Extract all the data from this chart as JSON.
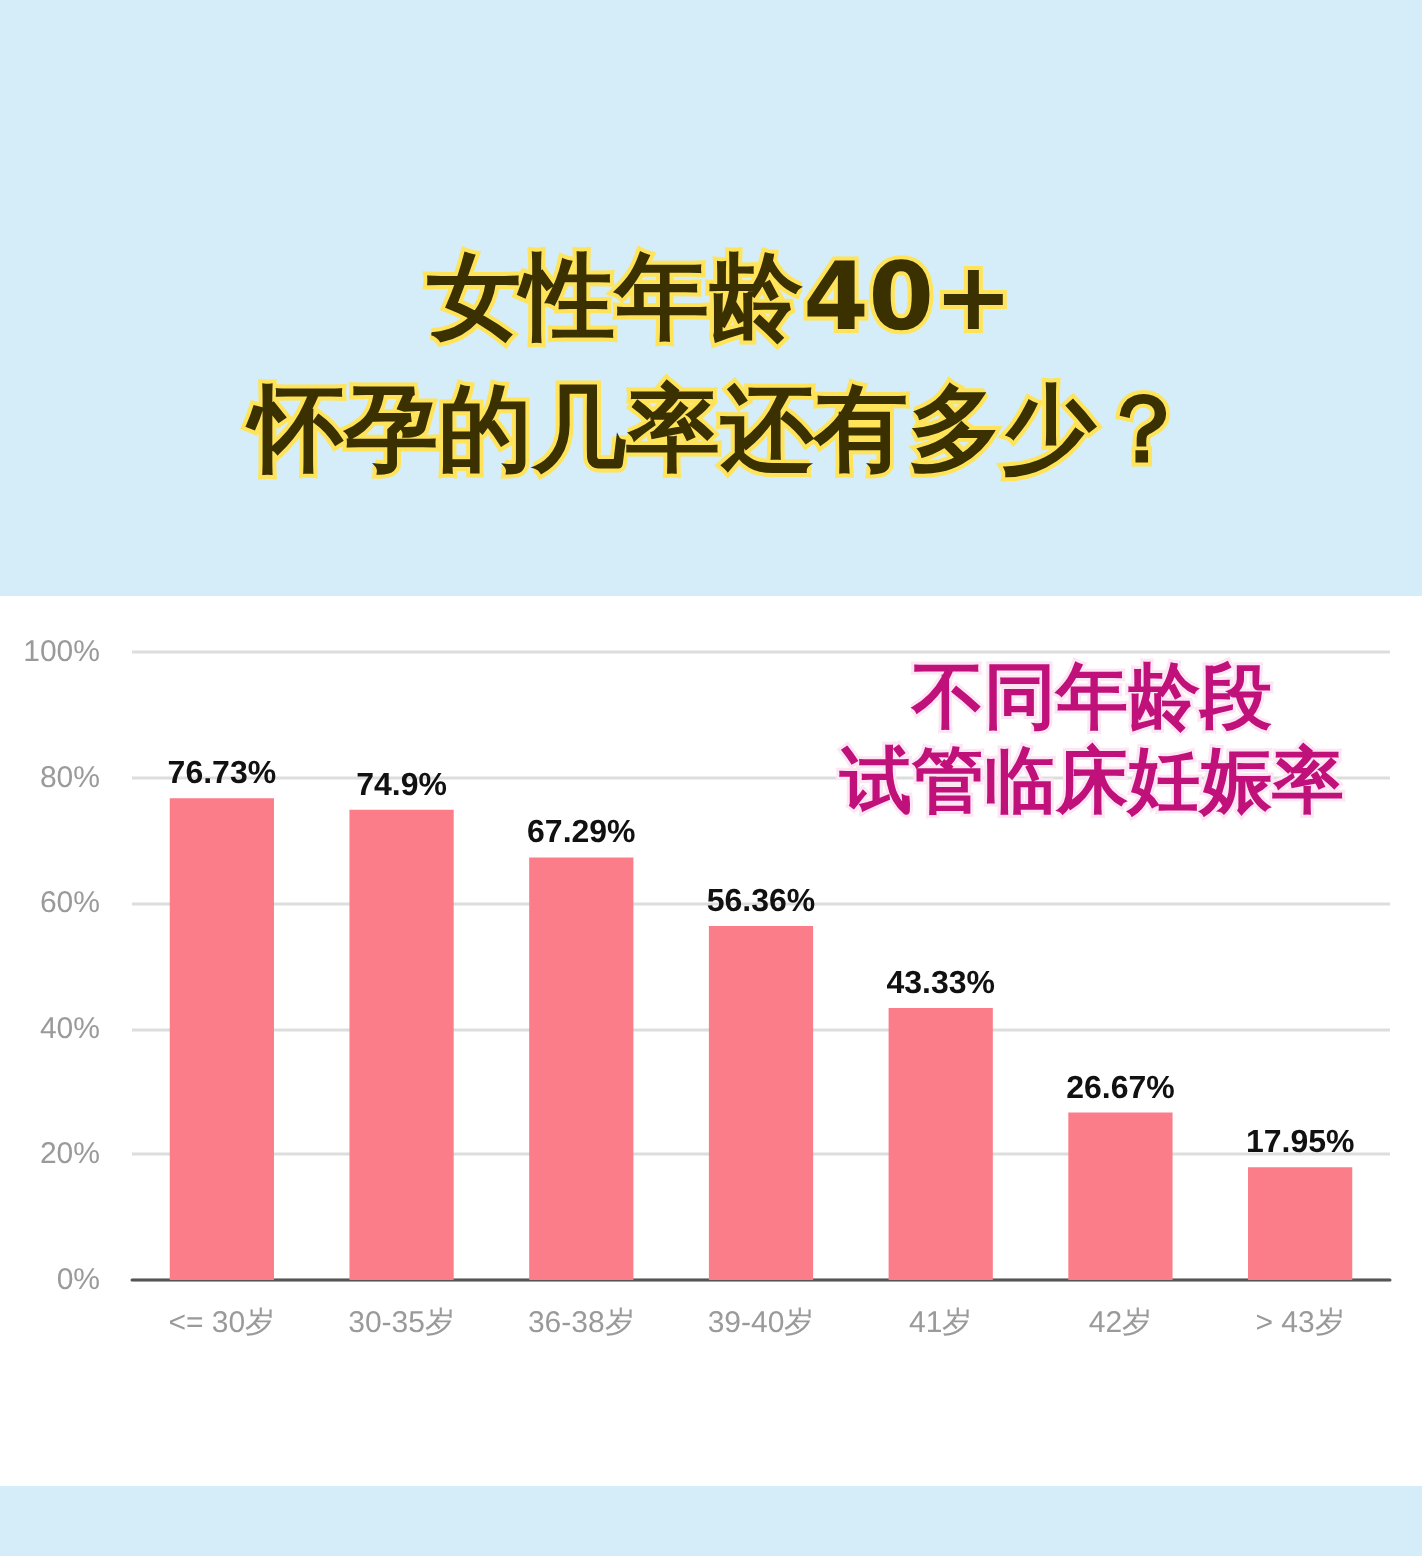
{
  "chart_data": {
    "type": "bar",
    "title": "女性年龄40+\n怀孕的几率还有多少？",
    "subtitle": "不同年龄段",
    "annotations": [
      "试管临床妊娠率"
    ],
    "categories": [
      "<= 30岁",
      "30-35岁",
      "36-38岁",
      "39-40岁",
      "41岁",
      "42岁",
      "> 43岁"
    ],
    "values": [
      76.73,
      74.9,
      67.29,
      56.36,
      43.33,
      26.67,
      17.95
    ],
    "value_labels": [
      "76.73%",
      "74.9%",
      "67.29%",
      "56.36%",
      "43.33%",
      "26.67%",
      "17.95%"
    ],
    "color": "#fa7d89",
    "ylim": [
      0,
      100
    ],
    "yticks": [
      {
        "value": 0,
        "label": "0%"
      },
      {
        "value": 20,
        "label": "20%"
      },
      {
        "value": 40,
        "label": "40%"
      },
      {
        "value": 60,
        "label": "60%"
      },
      {
        "value": 80,
        "label": "80%"
      },
      {
        "value": 100,
        "label": "100%"
      }
    ],
    "grid": "y"
  }
}
